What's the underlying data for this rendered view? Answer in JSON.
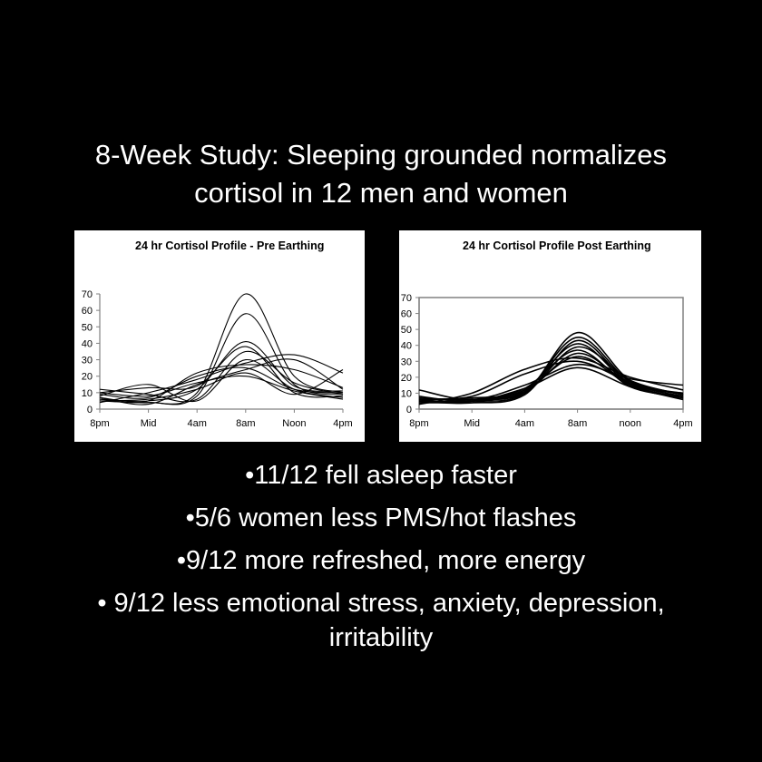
{
  "slide": {
    "title_line1": "8-Week Study: Sleeping grounded normalizes",
    "title_line2": "cortisol in 12 men and women",
    "bullets": [
      "•11/12 fell asleep faster",
      "•5/6 women less PMS/hot flashes",
      "•9/12 more refreshed, more energy",
      "• 9/12 less emotional stress, anxiety, depression,",
      "irritability"
    ]
  },
  "chart_data": [
    {
      "type": "line",
      "title": "24 hr Cortisol Profile  - Pre Earthing",
      "x": [
        "8pm",
        "Mid",
        "4am",
        "8am",
        "Noon",
        "4pm"
      ],
      "ylim": [
        0,
        70
      ],
      "yticks": [
        0,
        10,
        20,
        30,
        40,
        50,
        60,
        70
      ],
      "frame": "left-bottom",
      "series": [
        {
          "values": [
            7,
            4,
            10,
            70,
            20,
            10
          ]
        },
        {
          "values": [
            5,
            4,
            8,
            58,
            15,
            9
          ]
        },
        {
          "values": [
            6,
            5,
            12,
            41,
            14,
            11
          ]
        },
        {
          "values": [
            10,
            13,
            14,
            38,
            10,
            8
          ]
        },
        {
          "values": [
            12,
            9,
            6,
            35,
            16,
            9
          ]
        },
        {
          "values": [
            8,
            15,
            5,
            30,
            12,
            7
          ]
        },
        {
          "values": [
            4,
            10,
            18,
            28,
            33,
            22
          ]
        },
        {
          "values": [
            6,
            5,
            22,
            27,
            24,
            13
          ]
        },
        {
          "values": [
            9,
            7,
            20,
            25,
            12,
            10
          ]
        },
        {
          "values": [
            7,
            3,
            15,
            24,
            30,
            12
          ]
        },
        {
          "values": [
            5,
            6,
            12,
            22,
            9,
            24
          ]
        },
        {
          "values": [
            10,
            8,
            16,
            20,
            11,
            6
          ]
        }
      ]
    },
    {
      "type": "line",
      "title": "24 hr Cortisol Profile Post Earthing",
      "x": [
        "8pm",
        "Mid",
        "4am",
        "8am",
        "noon",
        "4pm"
      ],
      "ylim": [
        0,
        70
      ],
      "yticks": [
        0,
        10,
        20,
        30,
        40,
        50,
        60,
        70
      ],
      "frame": "box",
      "series": [
        {
          "values": [
            5,
            5,
            10,
            48,
            18,
            9
          ]
        },
        {
          "values": [
            4,
            6,
            11,
            45,
            17,
            8
          ]
        },
        {
          "values": [
            6,
            4,
            9,
            43,
            16,
            10
          ]
        },
        {
          "values": [
            5,
            5,
            12,
            41,
            15,
            7
          ]
        },
        {
          "values": [
            7,
            6,
            10,
            39,
            18,
            9
          ]
        },
        {
          "values": [
            4,
            5,
            13,
            37,
            14,
            8
          ]
        },
        {
          "values": [
            6,
            7,
            11,
            35,
            16,
            10
          ]
        },
        {
          "values": [
            5,
            4,
            12,
            33,
            15,
            7
          ]
        },
        {
          "values": [
            3,
            10,
            25,
            32,
            20,
            12
          ]
        },
        {
          "values": [
            6,
            8,
            22,
            30,
            17,
            9
          ]
        },
        {
          "values": [
            12,
            6,
            15,
            28,
            19,
            15
          ]
        },
        {
          "values": [
            8,
            5,
            13,
            26,
            14,
            6
          ]
        }
      ]
    }
  ]
}
